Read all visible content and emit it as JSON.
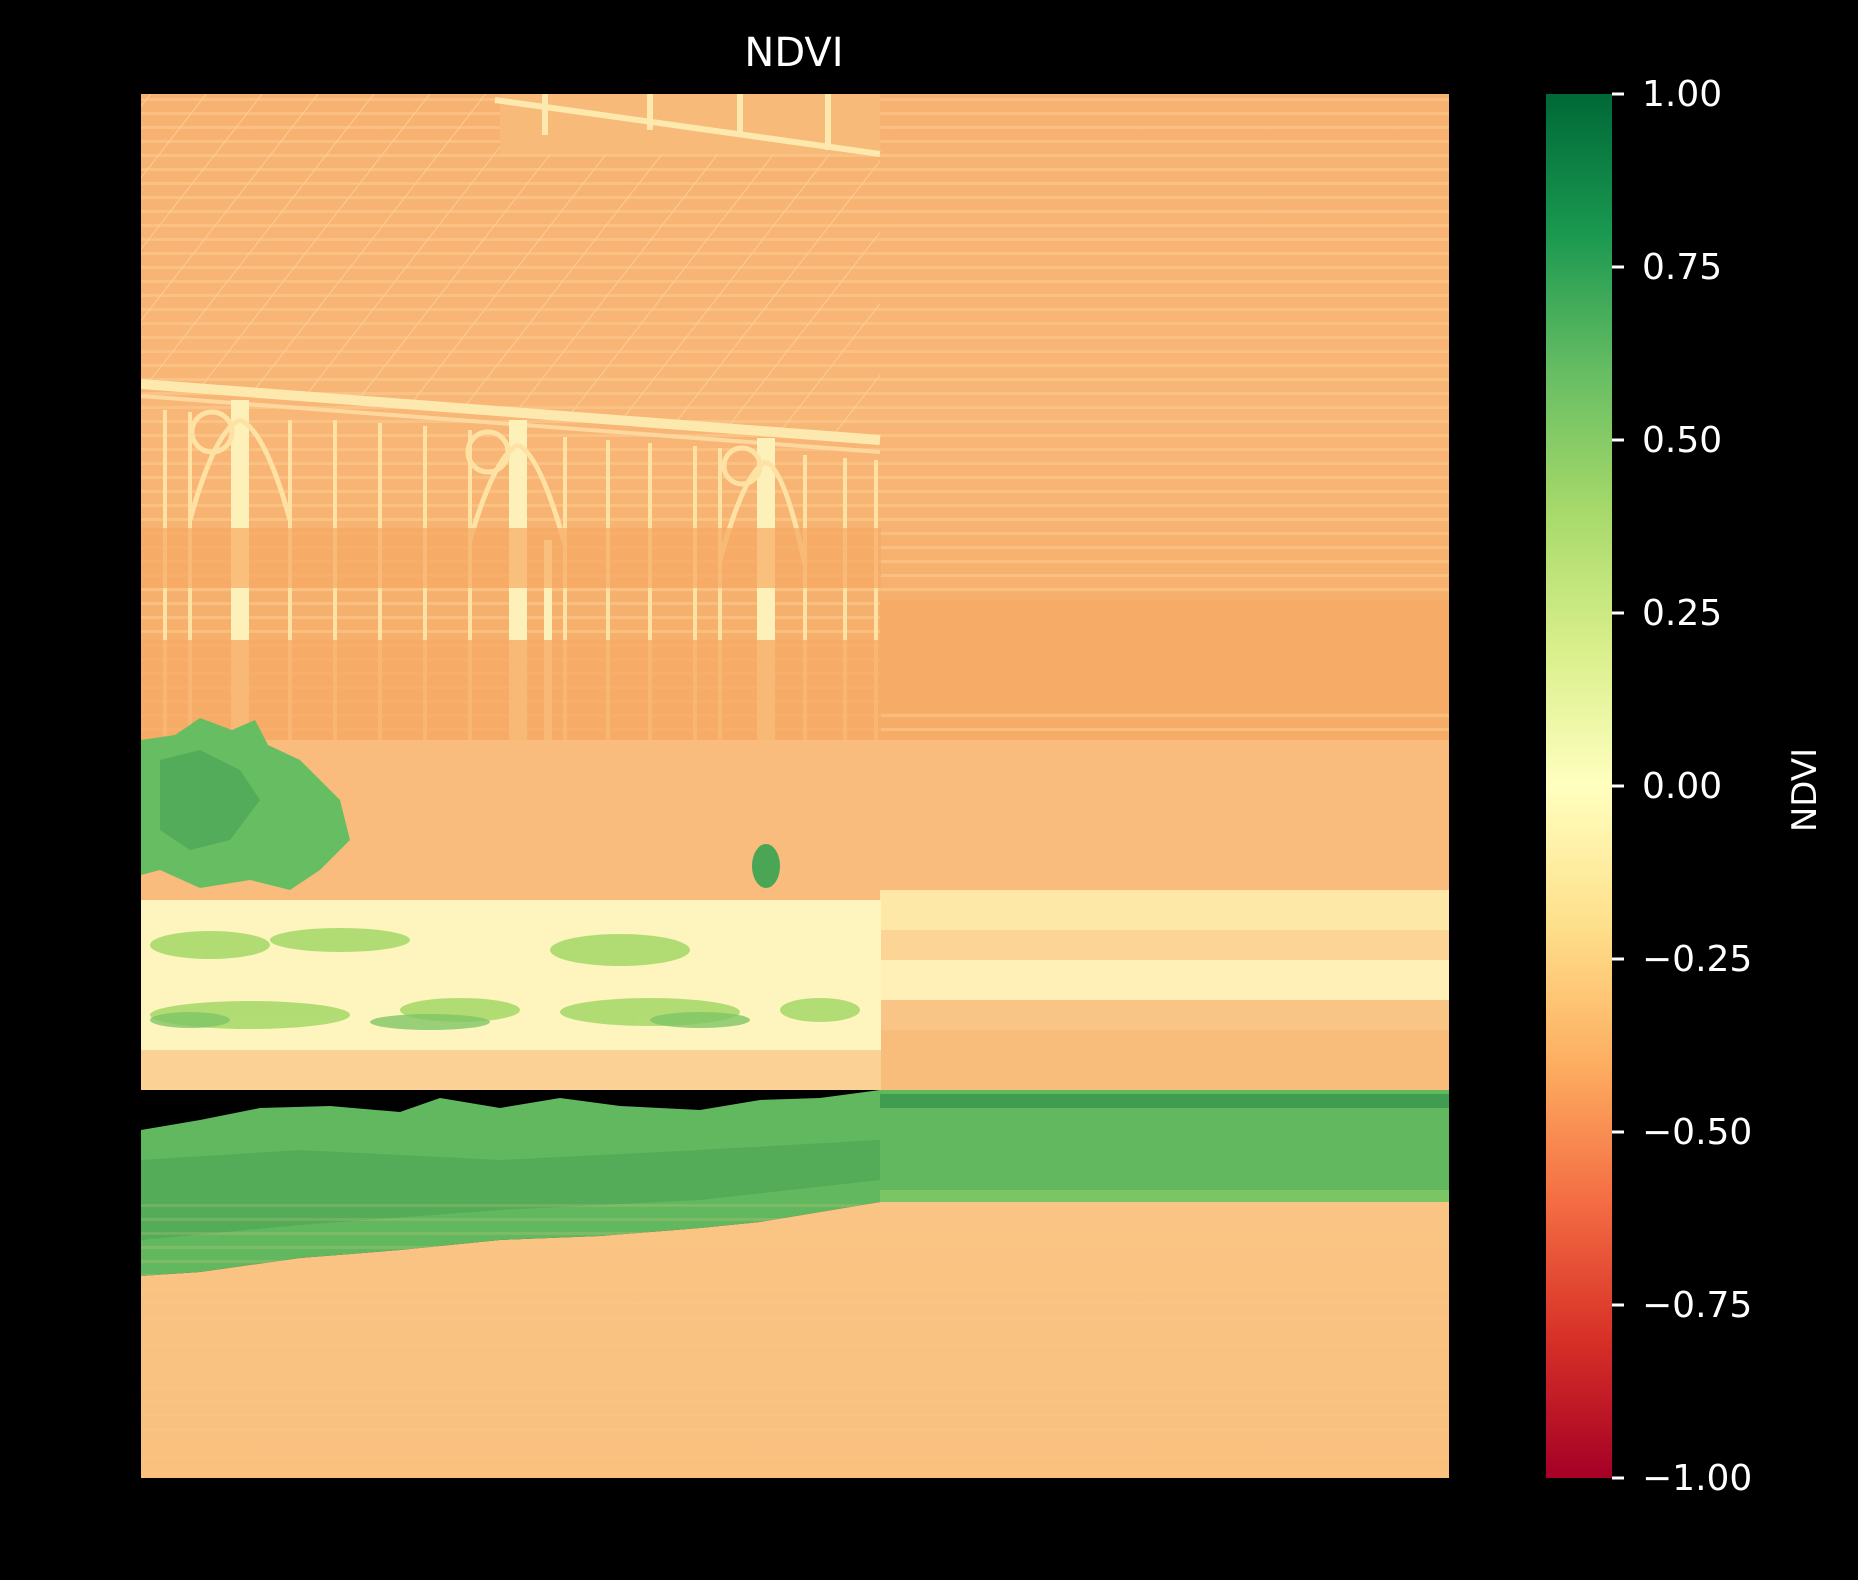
{
  "chart_data": {
    "type": "heatmap",
    "title": "NDVI",
    "xlabel": "",
    "ylabel": "",
    "axes_visible": false,
    "colormap": {
      "name": "RdYlGn",
      "stops": [
        "#a50026",
        "#d73027",
        "#f46d43",
        "#fdae61",
        "#fee08b",
        "#ffffbf",
        "#d9ef8b",
        "#a6d96a",
        "#66bd63",
        "#1a9850",
        "#006837"
      ]
    },
    "colorbar": {
      "label": "NDVI",
      "vmin": -1.0,
      "vmax": 1.0,
      "ticks": [
        1.0,
        0.75,
        0.5,
        0.25,
        0.0,
        -0.25,
        -0.5,
        -0.75,
        -1.0
      ],
      "tick_labels": [
        "1.00",
        "0.75",
        "0.50",
        "0.25",
        "0.00",
        "−0.25",
        "−0.50",
        "−0.75",
        "−1.00"
      ]
    },
    "image_content": "NDVI map of a greenhouse facade with a vegetated hedge band and paved ground; right side horizontally stretched",
    "value_regions": [
      {
        "region": "greenhouse roof",
        "ndvi": -0.45
      },
      {
        "region": "greenhouse facade",
        "ndvi": -0.45
      },
      {
        "region": "shrubs (upper left)",
        "ndvi": 0.55
      },
      {
        "region": "mixed low vegetation",
        "ndvi": 0.05
      },
      {
        "region": "hedge band",
        "ndvi": 0.65
      },
      {
        "region": "pavement",
        "ndvi": -0.3
      }
    ]
  }
}
